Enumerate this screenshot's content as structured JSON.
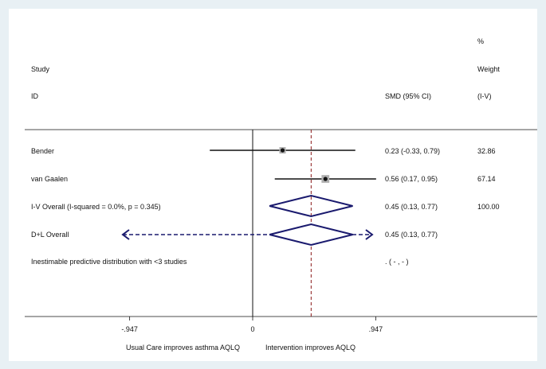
{
  "colors": {
    "background": "#e8f0f4",
    "plot_bg": "#ffffff",
    "ink": "#111111",
    "diamond": "#1a1a6e",
    "reference_line": "#8b1a1a",
    "weight_box": "#b0b0b0"
  },
  "chart_data": {
    "type": "forest",
    "header": {
      "study": "Study",
      "id": "ID",
      "smd": "SMD (95% CI)",
      "pct": "%",
      "weight": "Weight",
      "iv": "(I-V)"
    },
    "x_ticks": [
      {
        "value": -0.947,
        "label": "-.947"
      },
      {
        "value": 0,
        "label": "0"
      },
      {
        "value": 0.947,
        "label": ".947"
      }
    ],
    "xlim": [
      -1.7,
      1.7
    ],
    "null_value": 0,
    "overall_value": 0.45,
    "x_caption_left": "Usual Care improves asthma AQLQ",
    "x_caption_right": "Intervention improves AQLQ",
    "studies": [
      {
        "name": "Bender",
        "estimate": 0.23,
        "lower": -0.33,
        "upper": 0.79,
        "ci_text": "0.23 (-0.33, 0.79)",
        "weight_text": "32.86",
        "weight": 32.86
      },
      {
        "name": "van Gaalen",
        "estimate": 0.56,
        "lower": 0.17,
        "upper": 0.95,
        "ci_text": "0.56 (0.17, 0.95)",
        "weight_text": "67.14",
        "weight": 67.14
      }
    ],
    "iv_overall": {
      "label": "I-V Overall  (I-squared = 0.0%, p = 0.345)",
      "estimate": 0.45,
      "lower": 0.13,
      "upper": 0.77,
      "ci_text": "0.45 (0.13, 0.77)",
      "weight_text": "100.00"
    },
    "dl_overall": {
      "label": "D+L Overall",
      "estimate": 0.45,
      "lower": 0.13,
      "upper": 0.77,
      "ci_text": "0.45 (0.13, 0.77)",
      "predictive_lower": -1.0,
      "predictive_upper": 0.92
    },
    "predictive_note": {
      "label": "Inestimable predictive distribution with <3 studies",
      "ci_text": ".     (  -  ,  -  )"
    }
  }
}
